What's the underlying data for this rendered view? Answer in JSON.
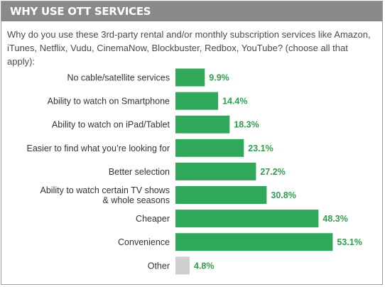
{
  "header": {
    "title": "WHY USE OTT SERVICES"
  },
  "question": "Why do you use these 3rd-party rental and/or monthly subscription services like Amazon, iTunes, Netflix, Vudu, CinemaNow, Blockbuster, Redbox, YouTube? (choose all that apply):",
  "colors": {
    "header_bg": "#8a8a8a",
    "bar": "#2fa85a",
    "bar_other": "#cfcfcf",
    "value_text": "#2f9e4f"
  },
  "chart_data": {
    "type": "bar",
    "orientation": "horizontal",
    "categories": [
      [
        "No cable/satellite services"
      ],
      [
        "Ability to watch on Smartphone"
      ],
      [
        "Ability to watch on iPad/Tablet"
      ],
      [
        "Easier to find what you’re looking for"
      ],
      [
        "Better selection"
      ],
      [
        "Ability to watch certain TV shows",
        "& whole seasons"
      ],
      [
        "Cheaper"
      ],
      [
        "Convenience"
      ],
      [
        "Other"
      ]
    ],
    "values": [
      9.9,
      14.4,
      18.3,
      23.1,
      27.2,
      30.8,
      48.3,
      53.1,
      4.8
    ],
    "value_labels": [
      "9.9%",
      "14.4%",
      "18.3%",
      "23.1%",
      "27.2%",
      "30.8%",
      "48.3%",
      "53.1%",
      "4.8%"
    ],
    "bar_styles": [
      "main",
      "main",
      "main",
      "main",
      "main",
      "main",
      "main",
      "main",
      "other"
    ]
  }
}
